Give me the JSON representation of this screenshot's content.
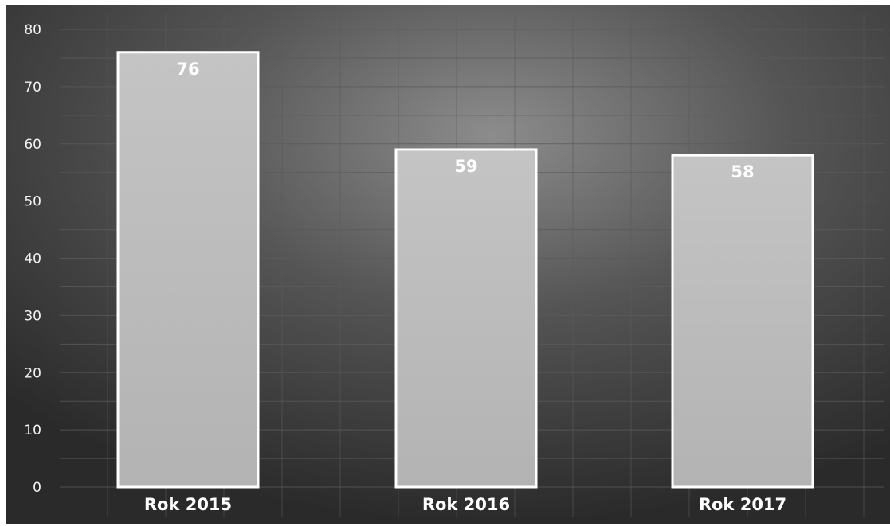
{
  "chart_data": {
    "type": "bar",
    "title": "",
    "xlabel": "",
    "ylabel": "",
    "categories": [
      "Rok 2015",
      "Rok 2016",
      "Rok 2017"
    ],
    "values": [
      76,
      59,
      58
    ],
    "data_labels": [
      "76",
      "59",
      "58"
    ],
    "ylim": [
      0,
      80
    ],
    "yticks": [
      0,
      10,
      20,
      30,
      40,
      50,
      60,
      70,
      80
    ],
    "grid": true,
    "legend": "none",
    "colors": {
      "background_dark": "#2e2e2e",
      "background_light": "#8a8a8a",
      "bar_fill": "#bdbdbd",
      "bar_outline": "#ffffff",
      "gridline": "#5a5a5a",
      "text": "#ffffff"
    }
  }
}
